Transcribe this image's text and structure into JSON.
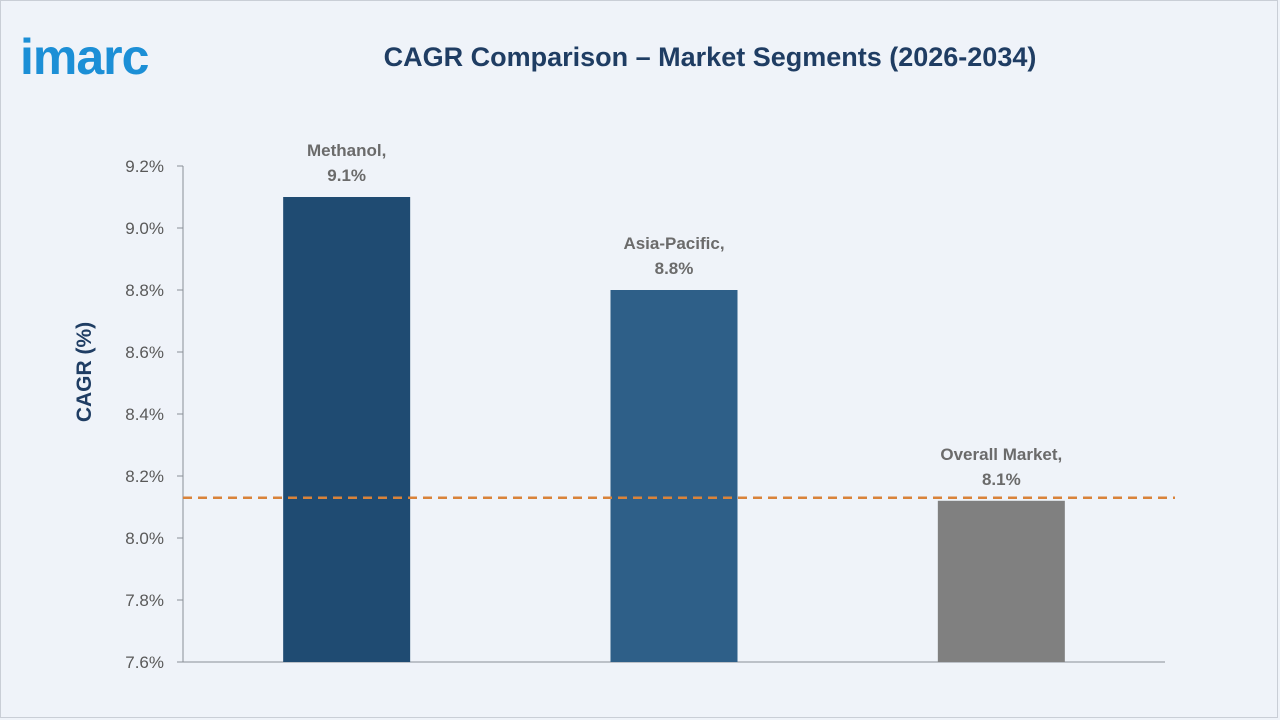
{
  "logo": {
    "text": "imarc",
    "color": "#1c8fd6"
  },
  "chart_data": {
    "type": "bar",
    "title": "CAGR Comparison – Market Segments (2026-2034)",
    "ylabel": "CAGR (%)",
    "xlabel": "",
    "ylim": [
      7.6,
      9.2
    ],
    "yticks": [
      7.6,
      7.8,
      8.0,
      8.2,
      8.4,
      8.6,
      8.8,
      9.0,
      9.2
    ],
    "yticklabels": [
      "7.6%",
      "7.8%",
      "8.0%",
      "8.2%",
      "8.4%",
      "8.6%",
      "8.8%",
      "9.0%",
      "9.2%"
    ],
    "categories": [
      "Methanol",
      "Asia-Pacific",
      "Overall Market"
    ],
    "values": [
      9.1,
      8.8,
      8.12
    ],
    "data_labels": [
      [
        "Methanol,",
        "9.1%"
      ],
      [
        "Asia-Pacific,",
        "8.8%"
      ],
      [
        "Overall Market,",
        "8.1%"
      ]
    ],
    "bar_colors": [
      "#1f4b72",
      "#2e5f88",
      "#808080"
    ],
    "reference_line": {
      "value": 8.13,
      "style": "dashed",
      "color": "#d9833a"
    },
    "grid": false,
    "legend": "none"
  }
}
